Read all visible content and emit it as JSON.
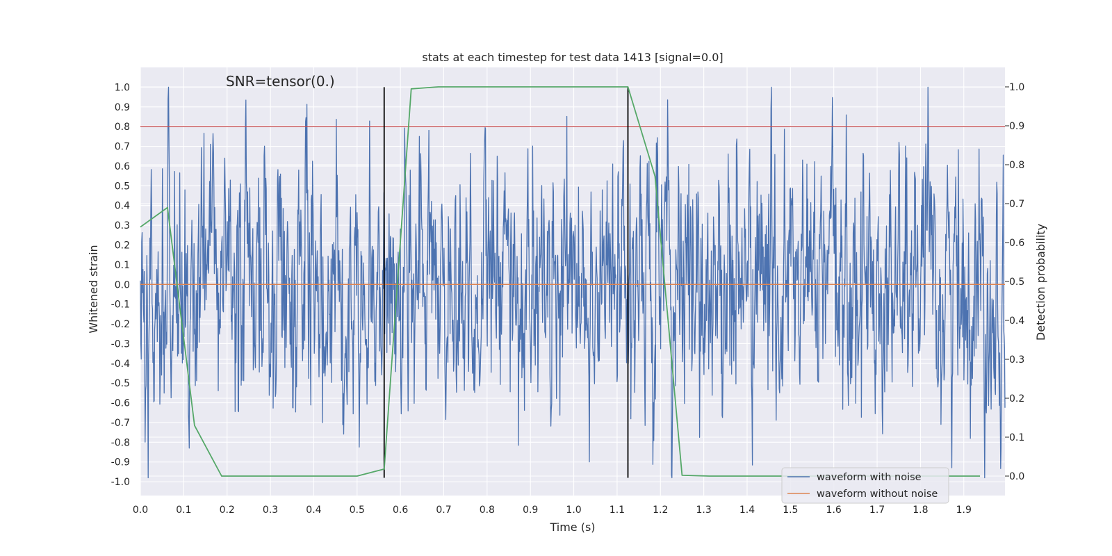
{
  "chart_data": {
    "type": "line",
    "title": "stats at each timestep for test data 1413 [signal=0.0]",
    "xlabel": "Time (s)",
    "ylabel": "Whitened strain",
    "y2label": "Detection probability",
    "xlim": [
      0.0,
      1.995
    ],
    "ylim": [
      -1.07,
      1.1
    ],
    "y2lim": [
      -0.05,
      1.05
    ],
    "xticks": [
      "0.0",
      "0.1",
      "0.2",
      "0.3",
      "0.4",
      "0.5",
      "0.6",
      "0.7",
      "0.8",
      "0.9",
      "1.0",
      "1.1",
      "1.2",
      "1.3",
      "1.4",
      "1.5",
      "1.6",
      "1.7",
      "1.8",
      "1.9"
    ],
    "yticks": [
      "1.0",
      "0.9",
      "0.8",
      "0.7",
      "0.6",
      "0.5",
      "0.4",
      "0.3",
      "0.2",
      "0.1",
      "0.0",
      "-0.1",
      "-0.2",
      "-0.3",
      "-0.4",
      "-0.5",
      "-0.6",
      "-0.7",
      "-0.8",
      "-0.9",
      "-1.0"
    ],
    "y2ticks": [
      "1.0",
      "0.9",
      "0.8",
      "0.7",
      "0.6",
      "0.5",
      "0.4",
      "0.3",
      "0.2",
      "0.1",
      "0.0"
    ],
    "grid": true,
    "annotation": "SNR=tensor(0.)",
    "legend_position": "lower-right",
    "series": [
      {
        "name": "waveform with noise",
        "axis": "left",
        "color": "#4c72b0",
        "sample_count": 4096,
        "t_start": 0.0,
        "t_end": 1.995,
        "approx_range": [
          -0.98,
          1.0
        ]
      },
      {
        "name": "waveform without noise",
        "axis": "left",
        "color": "#dd8452",
        "x": [
          0.0,
          1.995
        ],
        "y": [
          0.0,
          0.0
        ]
      },
      {
        "name": "detection probability",
        "axis": "right",
        "color": "#55a868",
        "x": [
          0.0,
          0.0625,
          0.125,
          0.1875,
          0.25,
          0.3125,
          0.375,
          0.4375,
          0.5,
          0.5625,
          0.625,
          0.6875,
          0.75,
          0.8125,
          0.875,
          0.9375,
          1.0,
          1.0625,
          1.125,
          1.1875,
          1.25,
          1.3125,
          1.375,
          1.4375,
          1.5,
          1.5625,
          1.625,
          1.6875,
          1.75,
          1.8125,
          1.875,
          1.9375
        ],
        "y": [
          0.64,
          0.69,
          0.13,
          0.0,
          0.0,
          0.0,
          0.0,
          0.0,
          0.0,
          0.018,
          0.995,
          1.0,
          1.0,
          1.0,
          1.0,
          1.0,
          1.0,
          1.0,
          1.0,
          0.77,
          0.002,
          0.0,
          0.0,
          0.0,
          0.0,
          0.0,
          0.0,
          0.0,
          0.0,
          0.0,
          0.0,
          0.0
        ]
      }
    ],
    "threshold": {
      "value": 0.8,
      "axis": "left",
      "color": "#c44e52"
    },
    "vertical_markers": [
      {
        "x": 0.5625,
        "y_range": [
          -0.98,
          1.0
        ],
        "color": "#000000"
      },
      {
        "x": 1.125,
        "y_range": [
          -0.98,
          1.0
        ],
        "color": "#000000"
      }
    ],
    "background_color": "#eaeaf2",
    "grid_color": "#ffffff"
  }
}
